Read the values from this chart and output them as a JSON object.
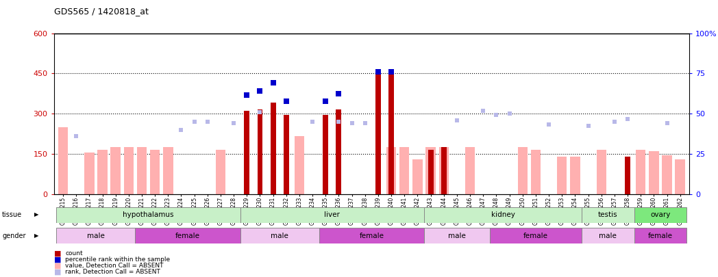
{
  "title": "GDS565 / 1420818_at",
  "samples": [
    "GSM19215",
    "GSM19216",
    "GSM19217",
    "GSM19218",
    "GSM19219",
    "GSM19220",
    "GSM19221",
    "GSM19222",
    "GSM19223",
    "GSM19224",
    "GSM19225",
    "GSM19226",
    "GSM19227",
    "GSM19228",
    "GSM19229",
    "GSM19230",
    "GSM19231",
    "GSM19232",
    "GSM19233",
    "GSM19234",
    "GSM19235",
    "GSM19236",
    "GSM19237",
    "GSM19238",
    "GSM19239",
    "GSM19240",
    "GSM19241",
    "GSM19242",
    "GSM19243",
    "GSM19244",
    "GSM19245",
    "GSM19246",
    "GSM19247",
    "GSM19248",
    "GSM19249",
    "GSM19250",
    "GSM19251",
    "GSM19252",
    "GSM19253",
    "GSM19254",
    "GSM19255",
    "GSM19256",
    "GSM19257",
    "GSM19258",
    "GSM19259",
    "GSM19260",
    "GSM19261",
    "GSM19262"
  ],
  "count_values": [
    null,
    null,
    null,
    null,
    null,
    null,
    null,
    null,
    null,
    null,
    null,
    null,
    null,
    null,
    310,
    315,
    340,
    295,
    null,
    null,
    295,
    315,
    null,
    null,
    445,
    445,
    null,
    null,
    165,
    175,
    null,
    null,
    null,
    null,
    null,
    null,
    null,
    null,
    null,
    null,
    null,
    null,
    null,
    140,
    null,
    null,
    null,
    null
  ],
  "value_absent": [
    250,
    null,
    155,
    165,
    175,
    175,
    175,
    165,
    175,
    null,
    null,
    null,
    165,
    null,
    null,
    null,
    null,
    null,
    215,
    null,
    null,
    null,
    null,
    null,
    null,
    175,
    175,
    130,
    175,
    175,
    null,
    175,
    null,
    null,
    null,
    175,
    165,
    null,
    140,
    140,
    null,
    165,
    null,
    null,
    165,
    160,
    145,
    130
  ],
  "rank_absent": [
    null,
    215,
    null,
    null,
    null,
    null,
    null,
    null,
    null,
    240,
    270,
    270,
    null,
    265,
    null,
    305,
    null,
    null,
    null,
    270,
    null,
    270,
    265,
    265,
    null,
    null,
    null,
    null,
    null,
    null,
    275,
    null,
    310,
    295,
    300,
    null,
    null,
    260,
    null,
    null,
    255,
    null,
    270,
    280,
    null,
    null,
    265,
    null
  ],
  "pct_rank_values": [
    null,
    null,
    null,
    null,
    null,
    null,
    null,
    null,
    null,
    null,
    null,
    null,
    null,
    null,
    370,
    385,
    415,
    345,
    null,
    null,
    345,
    375,
    null,
    null,
    455,
    455,
    null,
    null,
    null,
    null,
    null,
    null,
    null,
    null,
    null,
    null,
    null,
    null,
    null,
    null,
    null,
    null,
    null,
    null,
    null,
    null,
    null,
    null
  ],
  "tissue_groups": [
    {
      "label": "hypothalamus",
      "start": 0,
      "end": 13,
      "color": "#c8f0c8"
    },
    {
      "label": "liver",
      "start": 14,
      "end": 27,
      "color": "#c8f0c8"
    },
    {
      "label": "kidney",
      "start": 28,
      "end": 39,
      "color": "#c8f0c8"
    },
    {
      "label": "testis",
      "start": 40,
      "end": 43,
      "color": "#c8f0c8"
    },
    {
      "label": "ovary",
      "start": 44,
      "end": 47,
      "color": "#7de87d"
    }
  ],
  "gender_groups": [
    {
      "label": "male",
      "start": 0,
      "end": 5,
      "color": "#f0c8f0"
    },
    {
      "label": "female",
      "start": 6,
      "end": 13,
      "color": "#cc55cc"
    },
    {
      "label": "male",
      "start": 14,
      "end": 19,
      "color": "#f0c8f0"
    },
    {
      "label": "female",
      "start": 20,
      "end": 27,
      "color": "#cc55cc"
    },
    {
      "label": "male",
      "start": 28,
      "end": 32,
      "color": "#f0c8f0"
    },
    {
      "label": "female",
      "start": 33,
      "end": 39,
      "color": "#cc55cc"
    },
    {
      "label": "male",
      "start": 40,
      "end": 43,
      "color": "#f0c8f0"
    },
    {
      "label": "female",
      "start": 44,
      "end": 47,
      "color": "#cc55cc"
    }
  ],
  "ylim": [
    0,
    600
  ],
  "yticks_left": [
    0,
    150,
    300,
    450,
    600
  ],
  "yticks_right_vals": [
    0,
    25,
    50,
    75,
    100
  ],
  "yticks_right_labels": [
    "0",
    "25",
    "50",
    "75",
    "100%"
  ],
  "dotted_lines": [
    150,
    300,
    450
  ],
  "bar_color": "#bb0000",
  "value_absent_color": "#ffb0b0",
  "rank_absent_color": "#b8b8e8",
  "pct_rank_color": "#0000cc",
  "bg_color": "#ffffff",
  "top_line_color": "#000000"
}
